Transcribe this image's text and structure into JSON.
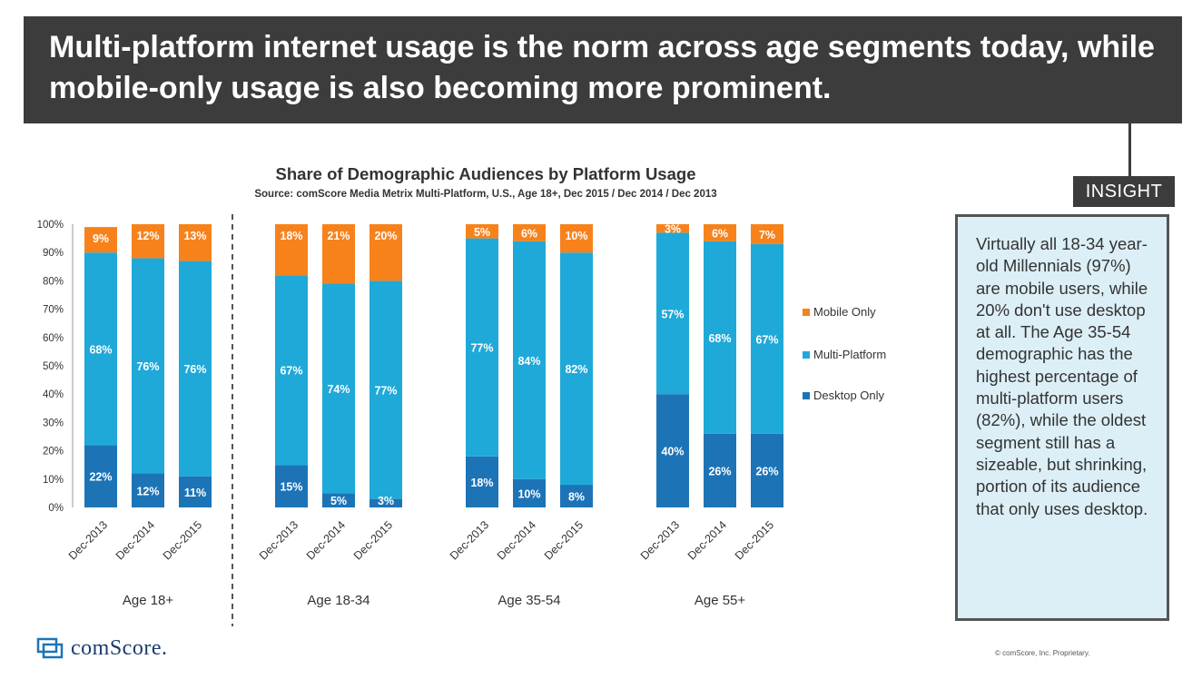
{
  "header": {
    "title": "Multi-platform internet usage is the norm across age segments today, while mobile-only usage is also becoming more prominent."
  },
  "insight": {
    "label": "INSIGHT",
    "text": "Virtually all 18-34 year-old Millennials (97%) are mobile users, while 20% don't use desktop at all. The Age 35-54 demographic has the highest percentage of multi-platform users (82%), while the oldest segment still has a sizeable, but shrinking, portion of its audience that only uses desktop."
  },
  "footer": {
    "logo_text": "comScore.",
    "copyright": "© comScore, Inc. Proprietary."
  },
  "colors": {
    "mobile": "#f7821b",
    "multi": "#1fa9d8",
    "desktop": "#1c74b7"
  },
  "chart_data": {
    "type": "bar",
    "stacked": true,
    "title": "Share of Demographic Audiences by Platform Usage",
    "subtitle": "Source: comScore Media Metrix Multi-Platform, U.S., Age 18+, Dec 2015 / Dec 2014 / Dec 2013",
    "ylim": [
      0,
      100
    ],
    "yticks": [
      "0%",
      "10%",
      "20%",
      "30%",
      "40%",
      "50%",
      "60%",
      "70%",
      "80%",
      "90%",
      "100%"
    ],
    "groups": [
      "Age 18+",
      "Age 18-34",
      "Age 35-54",
      "Age 55+"
    ],
    "categories": [
      "Dec-2013",
      "Dec-2014",
      "Dec-2015"
    ],
    "legend": [
      "Mobile Only",
      "Multi-Platform",
      "Desktop Only"
    ],
    "series": [
      {
        "name": "Desktop Only",
        "values": [
          [
            22,
            12,
            11
          ],
          [
            15,
            5,
            3
          ],
          [
            18,
            10,
            8
          ],
          [
            40,
            26,
            26
          ]
        ]
      },
      {
        "name": "Multi-Platform",
        "values": [
          [
            68,
            76,
            76
          ],
          [
            67,
            74,
            77
          ],
          [
            77,
            84,
            82
          ],
          [
            57,
            68,
            67
          ]
        ]
      },
      {
        "name": "Mobile Only",
        "values": [
          [
            9,
            12,
            13
          ],
          [
            18,
            21,
            20
          ],
          [
            5,
            6,
            10
          ],
          [
            3,
            6,
            7
          ]
        ]
      }
    ]
  }
}
